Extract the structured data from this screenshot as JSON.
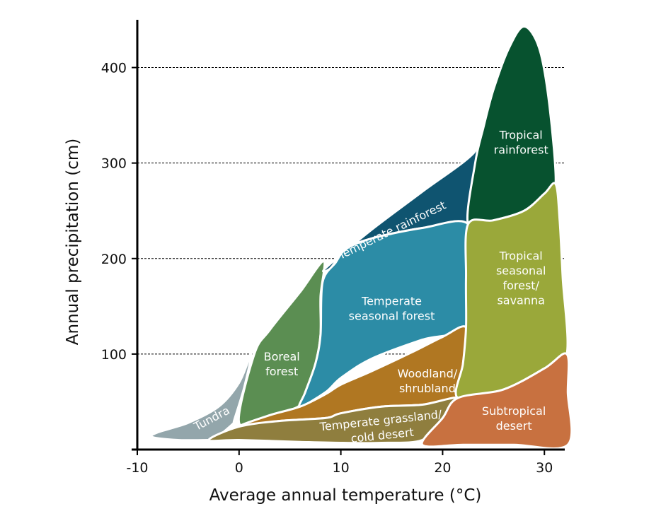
{
  "chart_data": {
    "type": "area",
    "title": "",
    "xlabel": "Average annual temperature (°C)",
    "ylabel": "Annual precipitation (cm)",
    "xlim": [
      -10,
      32
    ],
    "ylim": [
      0,
      450
    ],
    "xticks": [
      -10,
      0,
      10,
      20,
      30
    ],
    "yticks": [
      100,
      200,
      300,
      400
    ],
    "grid": "dashed horizontal lines at y ticks",
    "biomes": [
      {
        "name": "Tundra",
        "color": "#93a6ab",
        "label_lines": [
          "Tundra"
        ],
        "label_at": [
          -2.7,
          33
        ],
        "label_rotate": -28,
        "points": [
          [
            -3,
            10
          ],
          [
            -6,
            10
          ],
          [
            -8.5,
            13
          ],
          [
            -8,
            18
          ],
          [
            -5,
            28
          ],
          [
            -2,
            45
          ],
          [
            0,
            70
          ],
          [
            1.2,
            100
          ],
          [
            0.5,
            65
          ],
          [
            -0.5,
            30
          ],
          [
            -0.5,
            28
          ],
          [
            -2.5,
            10
          ]
        ]
      },
      {
        "name": "Boreal forest",
        "color": "#5b8e52",
        "label_lines": [
          "Boreal",
          "forest"
        ],
        "label_at": [
          4.2,
          90
        ],
        "points": [
          [
            0,
            28
          ],
          [
            1.5,
            100
          ],
          [
            3,
            125
          ],
          [
            6,
            165
          ],
          [
            8.3,
            197
          ],
          [
            8,
            160
          ],
          [
            8,
            120
          ],
          [
            7.5,
            90
          ],
          [
            6.5,
            60
          ],
          [
            5.8,
            45
          ],
          [
            3,
            36
          ]
        ]
      },
      {
        "name": "Temperate rainforest",
        "color": "#0f5470",
        "label_lines": [
          "Temperate rainforest"
        ],
        "label_at": [
          15,
          230
        ],
        "label_rotate": -26,
        "points": [
          [
            8.5,
            190
          ],
          [
            13,
            230
          ],
          [
            18,
            270
          ],
          [
            23,
            310
          ],
          [
            24,
            337
          ],
          [
            22.5,
            236
          ],
          [
            18,
            232
          ],
          [
            13,
            221
          ],
          [
            10.5,
            210
          ],
          [
            9,
            190
          ]
        ]
      },
      {
        "name": "Temperate seasonal forest",
        "color": "#2c8ca6",
        "label_lines": [
          "Temperate",
          "seasonal forest"
        ],
        "label_at": [
          15,
          148
        ],
        "points": [
          [
            8.2,
            175
          ],
          [
            9.5,
            196
          ],
          [
            10.5,
            210
          ],
          [
            13,
            221
          ],
          [
            18,
            232
          ],
          [
            22.5,
            236
          ],
          [
            22.3,
            180
          ],
          [
            22.3,
            128
          ],
          [
            18,
            115
          ],
          [
            13,
            95
          ],
          [
            10,
            75
          ],
          [
            8.5,
            60
          ],
          [
            6,
            45
          ],
          [
            6.5,
            60
          ],
          [
            7.5,
            90
          ],
          [
            8,
            120
          ]
        ]
      },
      {
        "name": "Woodland/shrubland",
        "color": "#b07722",
        "label_lines": [
          "Woodland/",
          "shrubland"
        ],
        "label_at": [
          18.5,
          72
        ],
        "points": [
          [
            0,
            24
          ],
          [
            3,
            36
          ],
          [
            6,
            45
          ],
          [
            8.5,
            58
          ],
          [
            10,
            68
          ],
          [
            13,
            82
          ],
          [
            17,
            102
          ],
          [
            20,
            118
          ],
          [
            22.3,
            128
          ],
          [
            22,
            90
          ],
          [
            21.5,
            54
          ],
          [
            18,
            47
          ],
          [
            14,
            45
          ],
          [
            10,
            38
          ],
          [
            8.5,
            33
          ],
          [
            4,
            30
          ]
        ]
      },
      {
        "name": "Temperate grassland/cold desert",
        "color": "#8f7e3e",
        "label_lines": [
          "Temperate grassland/",
          "cold desert"
        ],
        "label_at": [
          14,
          23
        ],
        "label_rotate": -6,
        "points": [
          [
            -3,
            10
          ],
          [
            0,
            24
          ],
          [
            4,
            30
          ],
          [
            8.5,
            33
          ],
          [
            10,
            38
          ],
          [
            14,
            45
          ],
          [
            18,
            47
          ],
          [
            21.5,
            54
          ],
          [
            20,
            33
          ],
          [
            18,
            10
          ],
          [
            14,
            7
          ],
          [
            10,
            7
          ],
          [
            6,
            8
          ],
          [
            0,
            10
          ]
        ]
      },
      {
        "name": "Tropical rainforest",
        "color": "#07522f",
        "label_lines": [
          "Tropical",
          "rainforest"
        ],
        "label_at": [
          27.7,
          322
        ],
        "points": [
          [
            24,
            337
          ],
          [
            25,
            377
          ],
          [
            26.5,
            420
          ],
          [
            28,
            443
          ],
          [
            29.5,
            420
          ],
          [
            30.5,
            360
          ],
          [
            31.1,
            278
          ],
          [
            30,
            268
          ],
          [
            28,
            250
          ],
          [
            25,
            240
          ],
          [
            22.5,
            236
          ],
          [
            23.2,
            300
          ]
        ]
      },
      {
        "name": "Tropical seasonal forest/savanna",
        "color": "#9aa83a",
        "label_lines": [
          "Tropical",
          "seasonal",
          "forest/",
          "savanna"
        ],
        "label_at": [
          27.7,
          180
        ],
        "points": [
          [
            22.5,
            236
          ],
          [
            25,
            240
          ],
          [
            28,
            250
          ],
          [
            30,
            268
          ],
          [
            31.1,
            278
          ],
          [
            31.5,
            240
          ],
          [
            31.8,
            180
          ],
          [
            32.2,
            100
          ],
          [
            30,
            85
          ],
          [
            26,
            63
          ],
          [
            21.5,
            54
          ],
          [
            22,
            90
          ],
          [
            22.3,
            128
          ],
          [
            22.3,
            180
          ]
        ]
      },
      {
        "name": "Subtropical desert",
        "color": "#c87140",
        "label_lines": [
          "Subtropical",
          "desert"
        ],
        "label_at": [
          27,
          33
        ],
        "points": [
          [
            21.5,
            54
          ],
          [
            26,
            63
          ],
          [
            30,
            85
          ],
          [
            32.2,
            100
          ],
          [
            32.3,
            60
          ],
          [
            32.3,
            5
          ],
          [
            27,
            5
          ],
          [
            22,
            5
          ],
          [
            18,
            5
          ],
          [
            20,
            33
          ]
        ]
      }
    ]
  }
}
